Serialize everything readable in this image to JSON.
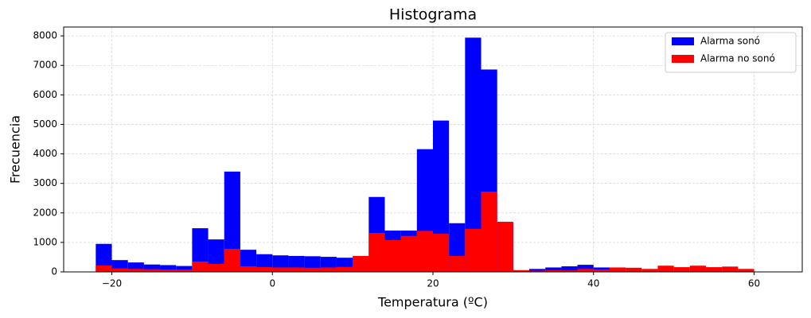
{
  "chart_data": {
    "type": "histogram",
    "title": "Histograma",
    "xlabel": "Temperatura (ºC)",
    "ylabel": "Frecuencia",
    "bins": [
      -22,
      -20,
      -18,
      -16,
      -14,
      -12,
      -10,
      -8,
      -6,
      -4,
      -2,
      0,
      2,
      4,
      6,
      8,
      10,
      12,
      14,
      16,
      18,
      20,
      22,
      24,
      26,
      28,
      30,
      32,
      34,
      36,
      38,
      40,
      42,
      44,
      46,
      48,
      50,
      52,
      54,
      56,
      58,
      60
    ],
    "series": [
      {
        "name": "Alarma sonó",
        "color": "#0000ff",
        "values": [
          950,
          400,
          320,
          250,
          230,
          200,
          1480,
          1100,
          3400,
          750,
          600,
          560,
          540,
          530,
          510,
          480,
          500,
          2540,
          1400,
          1400,
          4160,
          5130,
          1650,
          7940,
          6860,
          1650,
          50,
          100,
          150,
          190,
          240,
          150,
          0,
          0,
          0,
          0,
          0,
          0,
          0,
          0,
          0
        ]
      },
      {
        "name": "Alarma no sonó",
        "color": "#ff0000",
        "values": [
          220,
          120,
          100,
          90,
          80,
          80,
          350,
          270,
          780,
          190,
          160,
          150,
          150,
          140,
          150,
          170,
          540,
          1320,
          1080,
          1220,
          1390,
          1290,
          540,
          1460,
          2720,
          1700,
          60,
          40,
          60,
          50,
          100,
          80,
          150,
          140,
          100,
          210,
          160,
          210,
          160,
          180,
          100
        ]
      }
    ],
    "xlim": [
      -26,
      66
    ],
    "ylim": [
      0,
      8300
    ],
    "xticks": [
      {
        "value": -20,
        "label": "−20"
      },
      0,
      20,
      40,
      60
    ],
    "yticks": [
      0,
      1000,
      2000,
      3000,
      4000,
      5000,
      6000,
      7000,
      8000
    ],
    "grid": true,
    "legend": "upper right"
  }
}
